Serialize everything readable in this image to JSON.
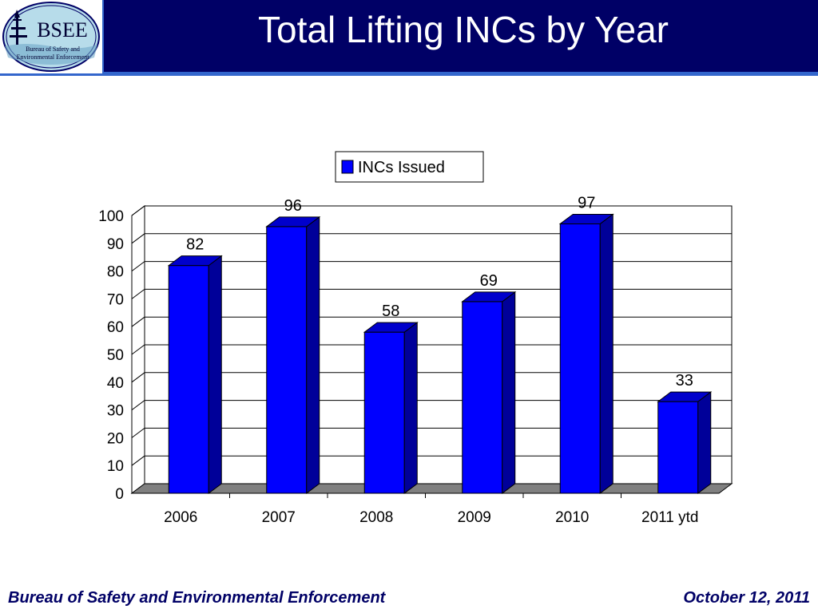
{
  "header": {
    "title": "Total Lifting INCs by Year",
    "colors": {
      "band": "#000066",
      "accent": "#3366cc"
    }
  },
  "logo": {
    "icon": "bsee-seal-icon",
    "text": "BSEE",
    "subtext_1": "Bureau of Safety and",
    "subtext_2": "Environmental Enforcement"
  },
  "chart_data": {
    "type": "bar",
    "categories": [
      "2006",
      "2007",
      "2008",
      "2009",
      "2010",
      "2011 ytd"
    ],
    "series": [
      {
        "name": "INCs Issued",
        "values": [
          82,
          96,
          58,
          69,
          97,
          33
        ],
        "color": "#0000ff"
      }
    ],
    "ylim": [
      0,
      100
    ],
    "yticks": [
      0,
      10,
      20,
      30,
      40,
      50,
      60,
      70,
      80,
      90,
      100
    ],
    "grid": true,
    "legend_position": "top-center",
    "data_labels": true,
    "style": "3d"
  },
  "footer": {
    "left": "Bureau of Safety and Environmental Enforcement",
    "right": "October 12, 2011"
  }
}
